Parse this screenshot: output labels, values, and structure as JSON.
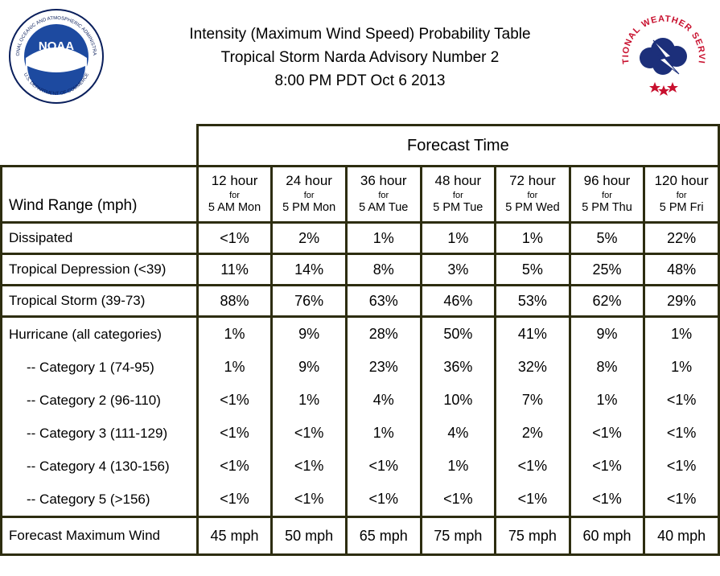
{
  "header": {
    "line1": "Intensity (Maximum Wind Speed) Probability Table",
    "line2": "Tropical Storm Narda Advisory Number 2",
    "line3": "8:00 PM PDT Oct 6 2013"
  },
  "logos": {
    "noaa_text": "NOAA",
    "noaa_ring": "NATIONAL OCEANIC AND ATMOSPHERIC ADMINISTRATION",
    "noaa_ring_bottom": "U.S. DEPARTMENT OF COMMERCE",
    "nws_ring": "NATIONAL WEATHER SERVICE"
  },
  "table": {
    "forecast_time_label": "Forecast Time",
    "wind_range_label": "Wind Range (mph)",
    "for_label": "for",
    "columns": [
      {
        "hour": "12 hour",
        "when": "5 AM Mon"
      },
      {
        "hour": "24 hour",
        "when": "5 PM Mon"
      },
      {
        "hour": "36 hour",
        "when": "5 AM Tue"
      },
      {
        "hour": "48 hour",
        "when": "5 PM Tue"
      },
      {
        "hour": "72 hour",
        "when": "5 PM Wed"
      },
      {
        "hour": "96 hour",
        "when": "5 PM Thu"
      },
      {
        "hour": "120 hour",
        "when": "5 PM Fri"
      }
    ],
    "rows": {
      "dissipated": {
        "label": "Dissipated",
        "values": [
          "<1%",
          "2%",
          "1%",
          "1%",
          "1%",
          "5%",
          "22%"
        ]
      },
      "td": {
        "label": "Tropical Depression (<39)",
        "values": [
          "11%",
          "14%",
          "8%",
          "3%",
          "5%",
          "25%",
          "48%"
        ]
      },
      "ts": {
        "label": "Tropical Storm (39-73)",
        "values": [
          "88%",
          "76%",
          "63%",
          "46%",
          "53%",
          "62%",
          "29%"
        ]
      },
      "hurricane": {
        "label": "Hurricane (all categories)",
        "values": [
          "1%",
          "9%",
          "28%",
          "50%",
          "41%",
          "9%",
          "1%"
        ]
      },
      "cat1": {
        "label": "-- Category 1 (74-95)",
        "values": [
          "1%",
          "9%",
          "23%",
          "36%",
          "32%",
          "8%",
          "1%"
        ]
      },
      "cat2": {
        "label": "-- Category 2 (96-110)",
        "values": [
          "<1%",
          "1%",
          "4%",
          "10%",
          "7%",
          "1%",
          "<1%"
        ]
      },
      "cat3": {
        "label": "-- Category 3 (111-129)",
        "values": [
          "<1%",
          "<1%",
          "1%",
          "4%",
          "2%",
          "<1%",
          "<1%"
        ]
      },
      "cat4": {
        "label": "-- Category 4 (130-156)",
        "values": [
          "<1%",
          "<1%",
          "<1%",
          "1%",
          "<1%",
          "<1%",
          "<1%"
        ]
      },
      "cat5": {
        "label": "-- Category 5 (>156)",
        "values": [
          "<1%",
          "<1%",
          "<1%",
          "<1%",
          "<1%",
          "<1%",
          "<1%"
        ]
      },
      "max_wind": {
        "label": "Forecast Maximum Wind",
        "values": [
          "45 mph",
          "50 mph",
          "65 mph",
          "75 mph",
          "75 mph",
          "60 mph",
          "40 mph"
        ]
      }
    }
  },
  "colors": {
    "border": "#2d2d10",
    "noaa_blue": "#1d4aa0",
    "nws_red": "#c8102e",
    "nws_navy": "#1c2f7a"
  }
}
